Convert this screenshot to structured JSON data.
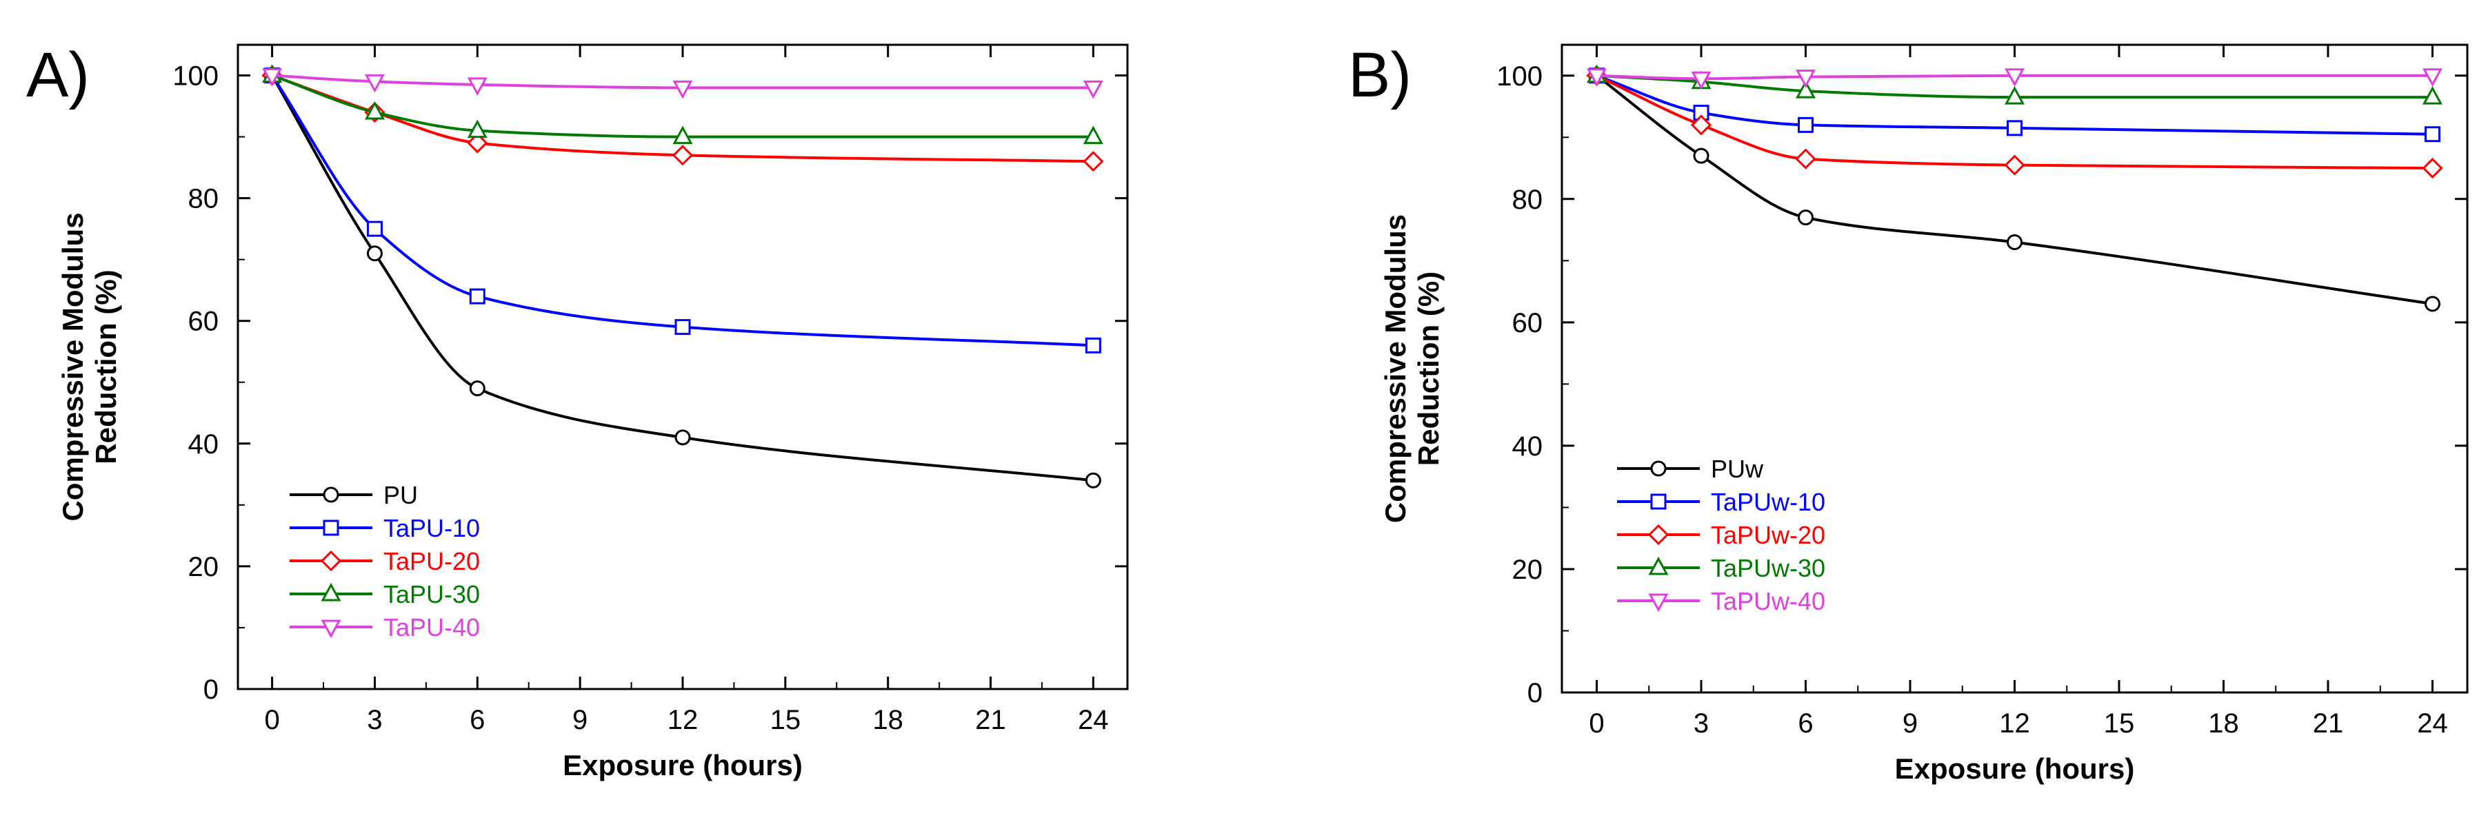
{
  "chart_data": [
    {
      "type": "line",
      "panel_label": "A)",
      "xlabel": "Exposure (hours)",
      "ylabel_lines": [
        "Compressive Modulus",
        "Reduction (%)"
      ],
      "xlim": [
        -1,
        25
      ],
      "ylim": [
        0,
        105
      ],
      "xticks": [
        0,
        3,
        6,
        9,
        12,
        15,
        18,
        21,
        24
      ],
      "xtick_labels": [
        "0",
        "3",
        "6",
        "9",
        "12",
        "15",
        "18",
        "21",
        "24"
      ],
      "yticks": [
        0,
        20,
        40,
        60,
        80,
        100
      ],
      "ytick_labels": [
        "0",
        "20",
        "40",
        "60",
        "80",
        "100"
      ],
      "legend_position": "bottom-left",
      "x": [
        0,
        3,
        6,
        12,
        24
      ],
      "series": [
        {
          "name": "PU",
          "color": "#000000",
          "marker": "circle",
          "values": [
            100,
            71,
            49,
            41,
            34
          ]
        },
        {
          "name": "TaPU-10",
          "color": "#0000ff",
          "marker": "square",
          "values": [
            100,
            75,
            64,
            59,
            56
          ]
        },
        {
          "name": "TaPU-20",
          "color": "#ff0000",
          "marker": "diamond",
          "values": [
            100,
            94,
            89,
            87,
            86
          ]
        },
        {
          "name": "TaPU-30",
          "color": "#007a00",
          "marker": "triangle-up",
          "values": [
            100,
            94,
            91,
            90,
            90
          ]
        },
        {
          "name": "TaPU-40",
          "color": "#e040e0",
          "marker": "triangle-down",
          "values": [
            100,
            99,
            98.5,
            98,
            98
          ]
        }
      ]
    },
    {
      "type": "line",
      "panel_label": "B)",
      "xlabel": "Exposure (hours)",
      "ylabel_lines": [
        "Compressive Modulus",
        "Reduction (%)"
      ],
      "xlim": [
        -1,
        25
      ],
      "ylim": [
        0,
        105
      ],
      "xticks": [
        0,
        3,
        6,
        9,
        12,
        15,
        18,
        21,
        24
      ],
      "xtick_labels": [
        "0",
        "3",
        "6",
        "9",
        "12",
        "15",
        "18",
        "21",
        "24"
      ],
      "yticks": [
        0,
        20,
        40,
        60,
        80,
        100
      ],
      "ytick_labels": [
        "0",
        "20",
        "40",
        "60",
        "80",
        "100"
      ],
      "legend_position": "bottom-left",
      "x": [
        0,
        3,
        6,
        12,
        24
      ],
      "series": [
        {
          "name": "PUw",
          "color": "#000000",
          "marker": "circle",
          "values": [
            100,
            87,
            77,
            73,
            63
          ]
        },
        {
          "name": "TaPUw-10",
          "color": "#0000ff",
          "marker": "square",
          "values": [
            100,
            94,
            92,
            91.5,
            90.5
          ]
        },
        {
          "name": "TaPUw-20",
          "color": "#ff0000",
          "marker": "diamond",
          "values": [
            100,
            92,
            86.5,
            85.5,
            85
          ]
        },
        {
          "name": "TaPUw-30",
          "color": "#007a00",
          "marker": "triangle-up",
          "values": [
            100,
            99,
            97.5,
            96.5,
            96.5
          ]
        },
        {
          "name": "TaPUw-40",
          "color": "#e040e0",
          "marker": "triangle-down",
          "values": [
            100,
            99.5,
            99.8,
            100,
            100
          ]
        }
      ]
    }
  ]
}
